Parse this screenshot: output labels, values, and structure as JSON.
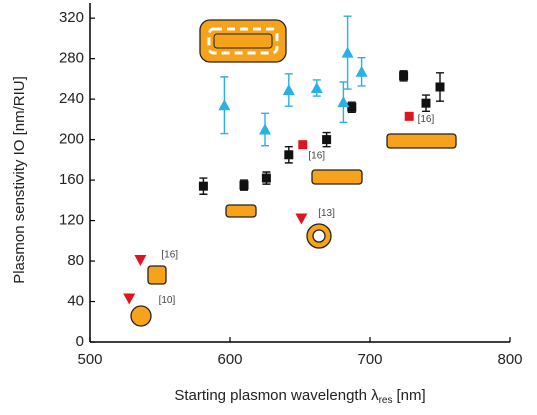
{
  "chart_data": {
    "type": "scatter",
    "x_label": {
      "text": "Starting plasmon wavelength λ",
      "subscript": "res",
      "unit": "[nm]"
    },
    "y_label": "Plasmon senstivity IO  [nm/RIU]",
    "xlim": [
      500,
      800
    ],
    "ylim": [
      0,
      335
    ],
    "xticks": [
      500,
      600,
      700,
      800
    ],
    "yticks": [
      0,
      40,
      80,
      120,
      160,
      200,
      240,
      280,
      320
    ],
    "series": [
      {
        "marker": "square",
        "color": "#111111",
        "x": [
          581,
          610,
          626,
          642,
          669,
          687,
          724,
          740,
          750
        ],
        "values": [
          154,
          155,
          162,
          185,
          200,
          232,
          263,
          236,
          252
        ],
        "errors": [
          8,
          5,
          6,
          8,
          7,
          5,
          5,
          8,
          14
        ]
      },
      {
        "marker": "triangle",
        "color": "#29b0e6",
        "x": [
          596,
          625,
          642,
          662,
          681,
          684,
          694
        ],
        "values": [
          234,
          210,
          249,
          251,
          237,
          286,
          267
        ],
        "errors": [
          28,
          16,
          16,
          8,
          20,
          36,
          14
        ]
      },
      {
        "marker": "square",
        "color": "#e0141e",
        "x": [
          652,
          728
        ],
        "values": [
          195,
          223
        ]
      },
      {
        "marker": "triangle-down",
        "color": "#e0141e",
        "x": [
          528,
          536,
          651
        ],
        "values": [
          43,
          81,
          122
        ]
      }
    ],
    "annotations": [
      {
        "text": "[16]",
        "x": 551,
        "y": 86
      },
      {
        "text": "[10]",
        "x": 549,
        "y": 41
      },
      {
        "text": "[16]",
        "x": 656,
        "y": 184
      },
      {
        "text": "[13]",
        "x": 663,
        "y": 127
      },
      {
        "text": "[16]",
        "x": 734,
        "y": 220
      }
    ]
  }
}
